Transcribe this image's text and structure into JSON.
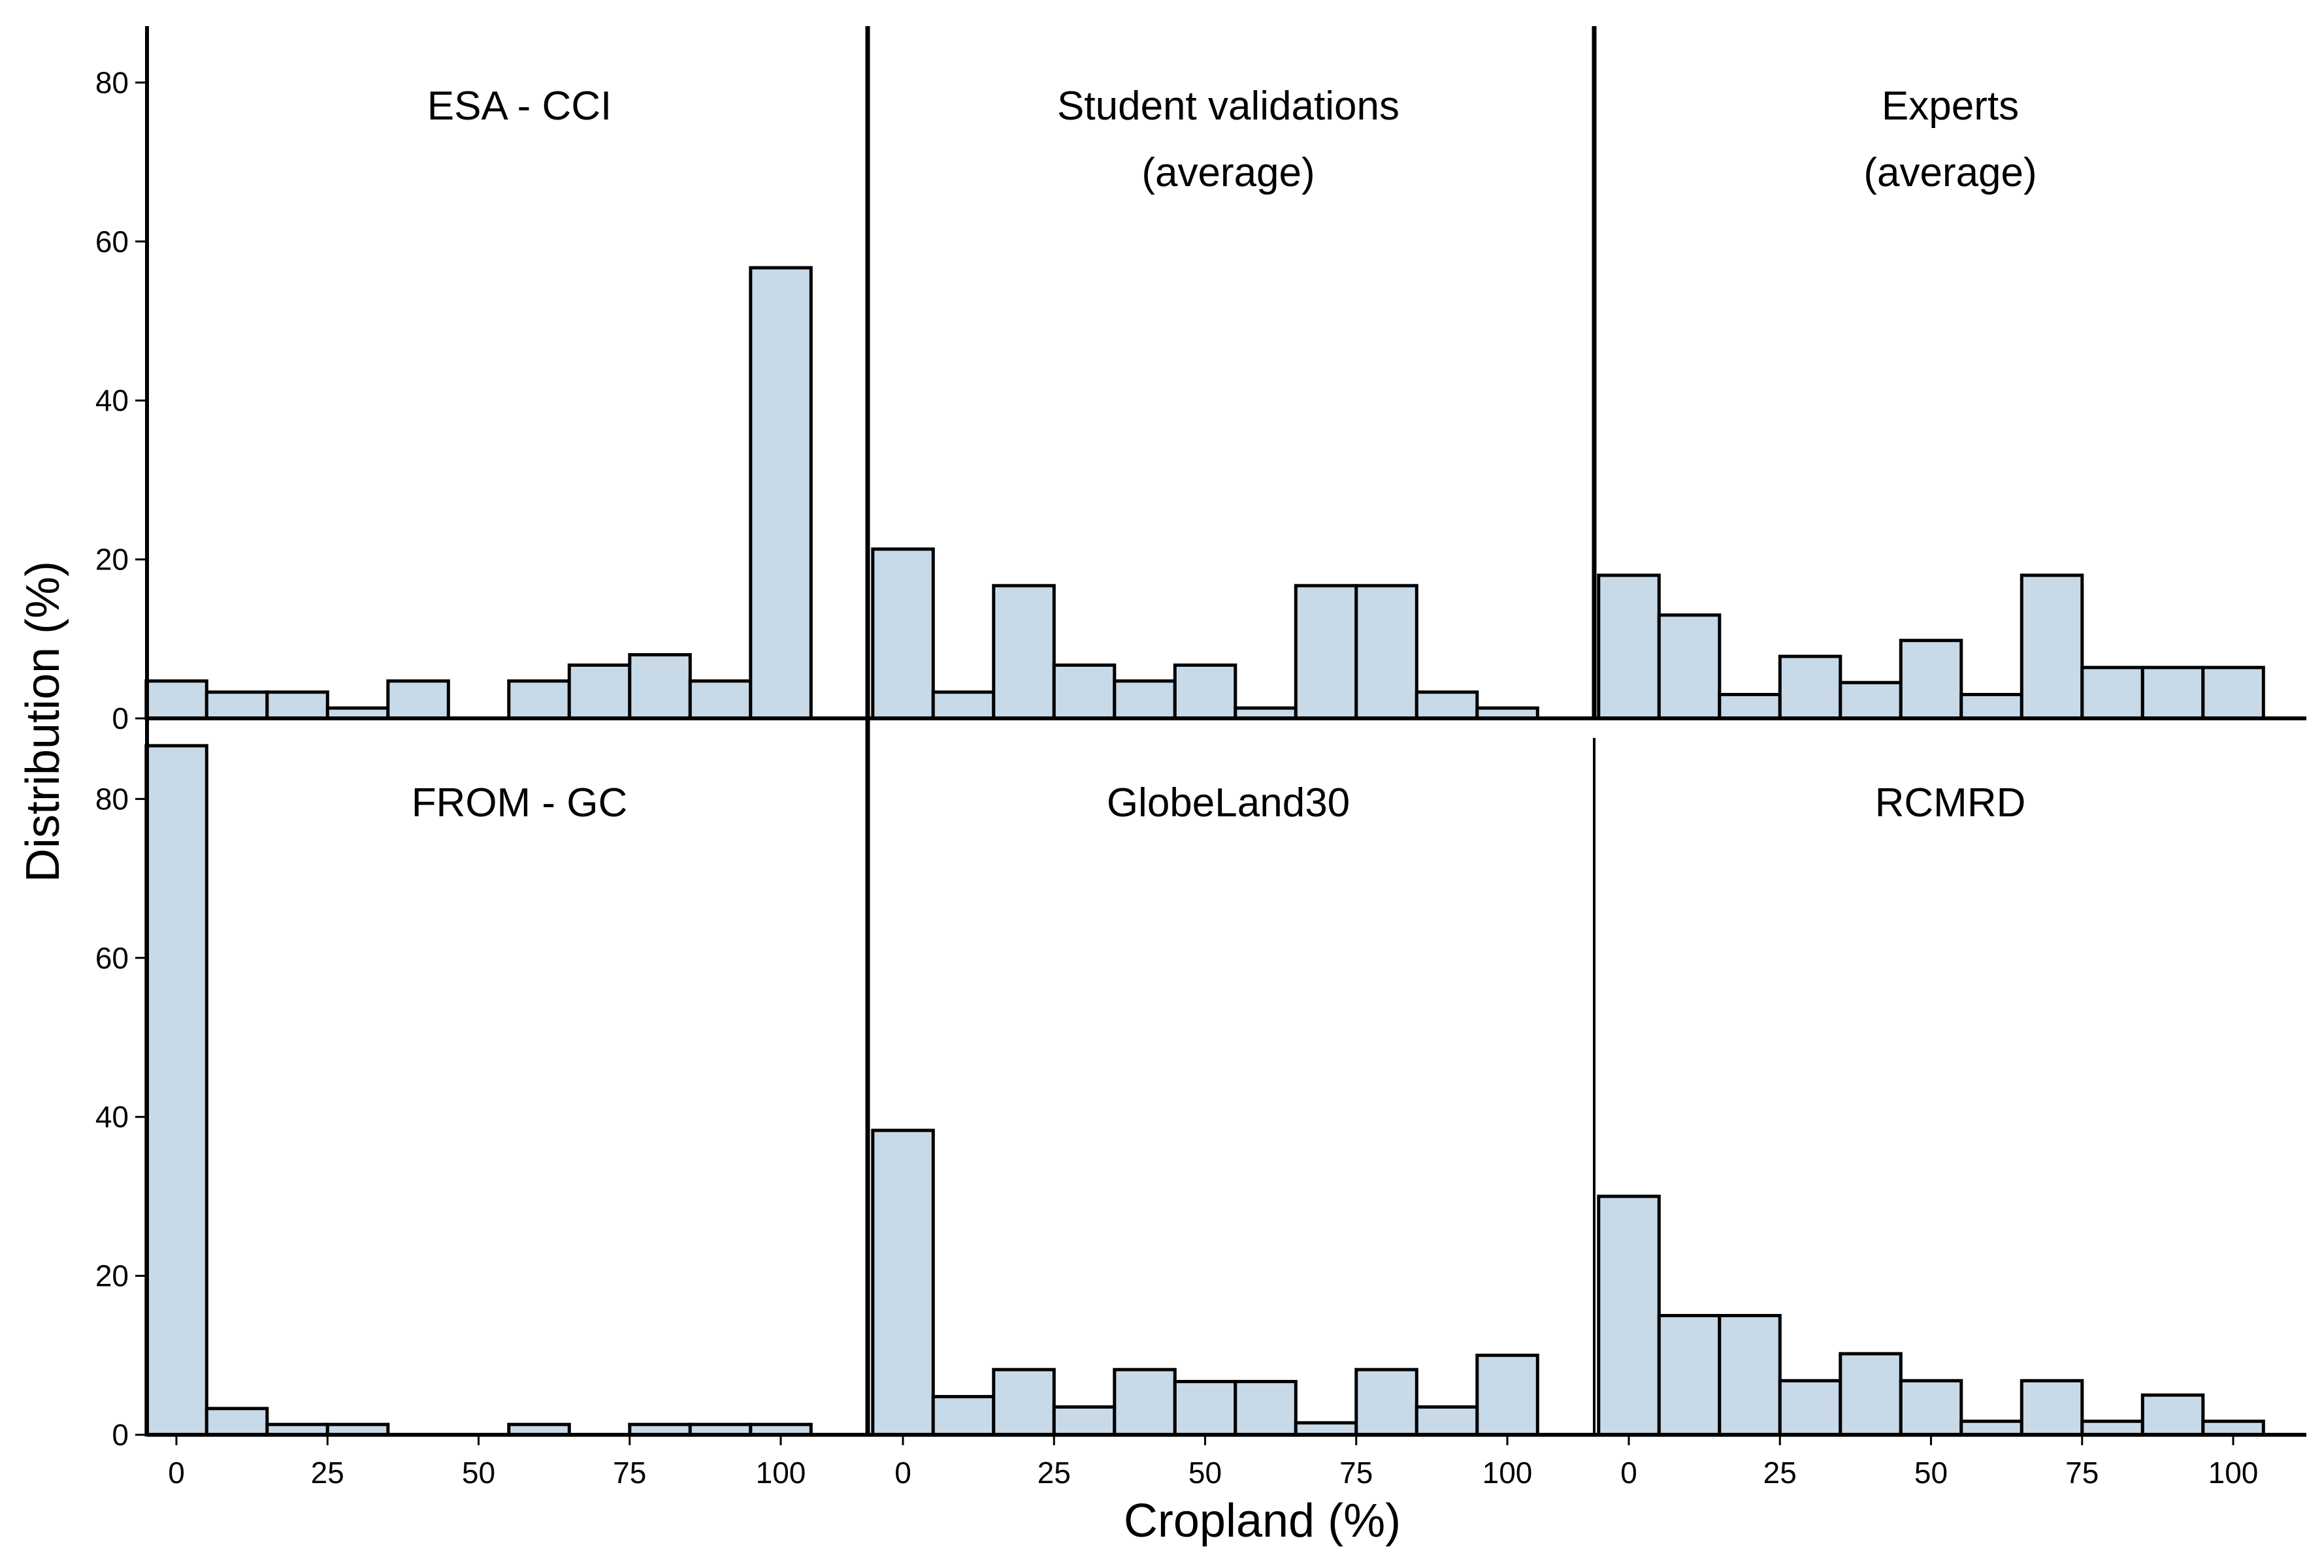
{
  "chart_data": {
    "type": "bar",
    "xlabel": "Cropland (%)",
    "ylabel": "Distribution (%)",
    "xlim": [
      -5,
      105
    ],
    "ylim": [
      0,
      88
    ],
    "x_ticks": [
      0,
      25,
      50,
      75,
      100
    ],
    "x_tick_labels": [
      "0",
      "25",
      "50",
      "75",
      "100"
    ],
    "y_ticks": [
      0,
      20,
      40,
      60,
      80
    ],
    "y_tick_labels": [
      "0",
      "20",
      "40",
      "60",
      "80"
    ],
    "bin_starts": [
      -5,
      5,
      15,
      25,
      35,
      45,
      55,
      65,
      75,
      85,
      95
    ],
    "bin_width": 10,
    "bar_color": "#c8d9e8",
    "panels": [
      {
        "title_lines": [
          "ESA - CCI"
        ],
        "row": 0,
        "col": 0,
        "values": [
          4.7,
          3.3,
          3.3,
          1.3,
          4.7,
          0,
          4.7,
          6.7,
          8.0,
          4.7,
          56.7
        ]
      },
      {
        "title_lines": [
          "Student validations",
          "(average)"
        ],
        "row": 0,
        "col": 1,
        "values": [
          21.3,
          3.3,
          16.7,
          6.7,
          4.7,
          6.7,
          1.3,
          16.7,
          16.7,
          3.3,
          1.3
        ]
      },
      {
        "title_lines": [
          "Experts",
          "(average)"
        ],
        "row": 0,
        "col": 2,
        "values": [
          18.0,
          13.0,
          3.0,
          7.8,
          4.5,
          9.8,
          3.0,
          18.0,
          6.4,
          6.4,
          6.4
        ]
      },
      {
        "title_lines": [
          "FROM - GC"
        ],
        "row": 1,
        "col": 0,
        "values": [
          86.7,
          3.3,
          1.3,
          1.3,
          0,
          0,
          1.3,
          0,
          1.3,
          1.3,
          1.3
        ]
      },
      {
        "title_lines": [
          "GlobeLand30"
        ],
        "row": 1,
        "col": 1,
        "values": [
          38.3,
          4.8,
          8.2,
          3.5,
          8.2,
          6.7,
          6.7,
          1.5,
          8.2,
          3.5,
          10.0
        ]
      },
      {
        "title_lines": [
          "RCMRD"
        ],
        "row": 1,
        "col": 2,
        "values": [
          30.0,
          15.0,
          15.0,
          6.8,
          10.2,
          6.8,
          1.7,
          6.8,
          1.7,
          5.0,
          1.7
        ]
      }
    ]
  }
}
